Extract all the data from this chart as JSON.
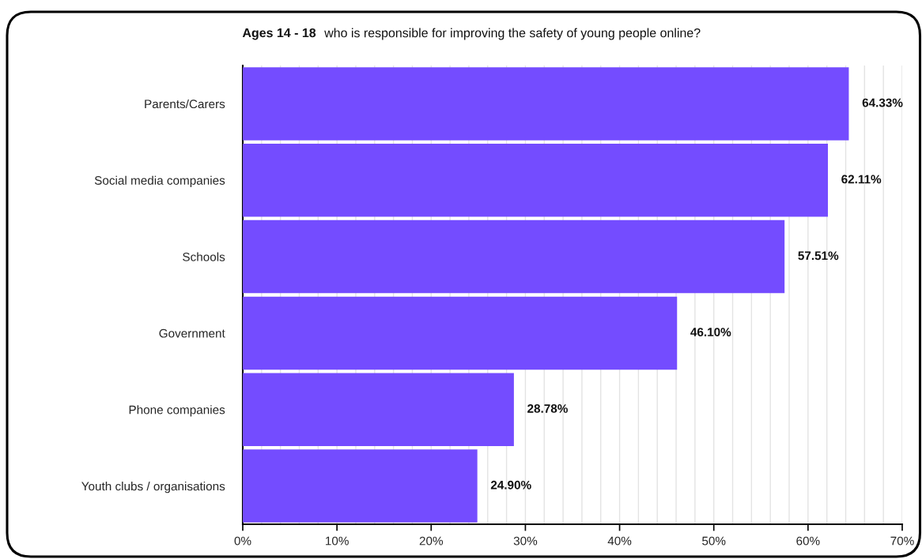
{
  "chart_data": {
    "type": "bar",
    "orientation": "horizontal",
    "title": "Ages 14 - 18",
    "subtitle": "who is responsible for improving the safety of young people online?",
    "categories": [
      "Parents/Carers",
      "Social media companies",
      "Schools",
      "Government",
      "Phone companies",
      "Youth clubs / organisations"
    ],
    "values": [
      64.33,
      62.11,
      57.51,
      46.1,
      28.78,
      24.9
    ],
    "color": "#744cff",
    "value_labels": [
      "64.33%",
      "62.11%",
      "57.51%",
      "46.10%",
      "28.78%",
      "24.90%"
    ],
    "xlim": [
      0,
      70
    ],
    "xticks": [
      {
        "value": 0,
        "label": "0%"
      },
      {
        "value": 2,
        "label": null
      },
      {
        "value": 4,
        "label": null
      },
      {
        "value": 6,
        "label": null
      },
      {
        "value": 8,
        "label": null
      },
      {
        "value": 10,
        "label": "10%"
      },
      {
        "value": 12,
        "label": null
      },
      {
        "value": 14,
        "label": null
      },
      {
        "value": 16,
        "label": null
      },
      {
        "value": 18,
        "label": null
      },
      {
        "value": 20,
        "label": "20%"
      },
      {
        "value": 22,
        "label": null
      },
      {
        "value": 24,
        "label": null
      },
      {
        "value": 26,
        "label": null
      },
      {
        "value": 28,
        "label": null
      },
      {
        "value": 30,
        "label": "30%"
      },
      {
        "value": 32,
        "label": null
      },
      {
        "value": 34,
        "label": null
      },
      {
        "value": 36,
        "label": null
      },
      {
        "value": 38,
        "label": null
      },
      {
        "value": 40,
        "label": "40%"
      },
      {
        "value": 42,
        "label": null
      },
      {
        "value": 44,
        "label": null
      },
      {
        "value": 46,
        "label": null
      },
      {
        "value": 48,
        "label": null
      },
      {
        "value": 50,
        "label": "50%"
      },
      {
        "value": 52,
        "label": null
      },
      {
        "value": 54,
        "label": null
      },
      {
        "value": 56,
        "label": null
      },
      {
        "value": 58,
        "label": null
      },
      {
        "value": 60,
        "label": "60%"
      },
      {
        "value": 62,
        "label": null
      },
      {
        "value": 64,
        "label": null
      },
      {
        "value": 66,
        "label": null
      },
      {
        "value": 68,
        "label": null
      },
      {
        "value": 70,
        "label": "70%"
      }
    ],
    "grid": "x"
  }
}
